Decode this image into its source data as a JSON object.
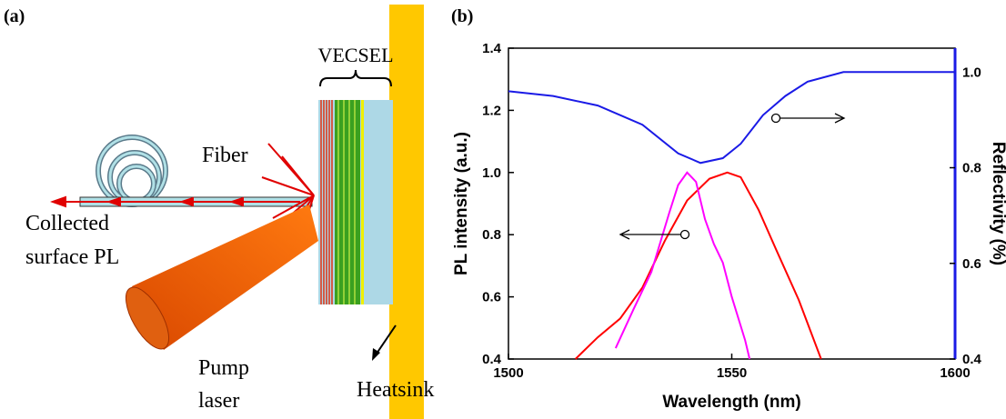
{
  "panel_a": {
    "label": "(a)",
    "vecsel": "VECSEL",
    "fiber": "Fiber",
    "collected": [
      "Collected",
      "surface PL"
    ],
    "pump": [
      "Pump",
      "laser"
    ],
    "heatsink": "Heatsink"
  },
  "panel_b": {
    "label": "(b)"
  },
  "chart_data": {
    "type": "line",
    "x_label": "Wavelength (nm)",
    "y_label": "PL intensity (a.u.)",
    "y2_label": "Reflectivity (%)",
    "xlim": [
      1500,
      1600
    ],
    "xticks": [
      1500,
      1550,
      1600
    ],
    "ylim": [
      0.4,
      1.4
    ],
    "yticks": [
      0.4,
      0.6,
      0.8,
      {
        "value": 1,
        "label": "1.0"
      },
      1.2,
      1.4
    ],
    "y2lim": [
      0.4,
      1.05
    ],
    "y2ticks": [
      0.4,
      0.6,
      0.8,
      {
        "value": 1,
        "label": "1.0"
      }
    ],
    "series": [
      {
        "color": "#1a1ae6",
        "axis": "y2",
        "x": [
          1500,
          1510,
          1520,
          1530,
          1538,
          1543,
          1548,
          1552,
          1557,
          1562,
          1567,
          1575,
          1585,
          1600
        ],
        "values": [
          0.96,
          0.95,
          0.93,
          0.89,
          0.83,
          0.81,
          0.82,
          0.85,
          0.91,
          0.95,
          0.98,
          1.0,
          1.0,
          1.0
        ]
      },
      {
        "color": "#ff0000",
        "x": [
          1515,
          1520,
          1525,
          1530,
          1535,
          1540,
          1545,
          1549,
          1552,
          1556,
          1560,
          1565,
          1570
        ],
        "values": [
          0.4,
          0.47,
          0.53,
          0.63,
          0.78,
          0.91,
          0.98,
          1.0,
          0.985,
          0.88,
          0.75,
          0.59,
          0.4
        ]
      },
      {
        "color": "#ff00ff",
        "x": [
          1524,
          1528,
          1532,
          1536,
          1538,
          1540,
          1542,
          1544,
          1546,
          1548,
          1550,
          1553,
          1554
        ],
        "values": [
          0.435,
          0.56,
          0.68,
          0.87,
          0.96,
          1.0,
          0.97,
          0.85,
          0.77,
          0.71,
          0.6,
          0.46,
          0.4
        ]
      }
    ]
  }
}
